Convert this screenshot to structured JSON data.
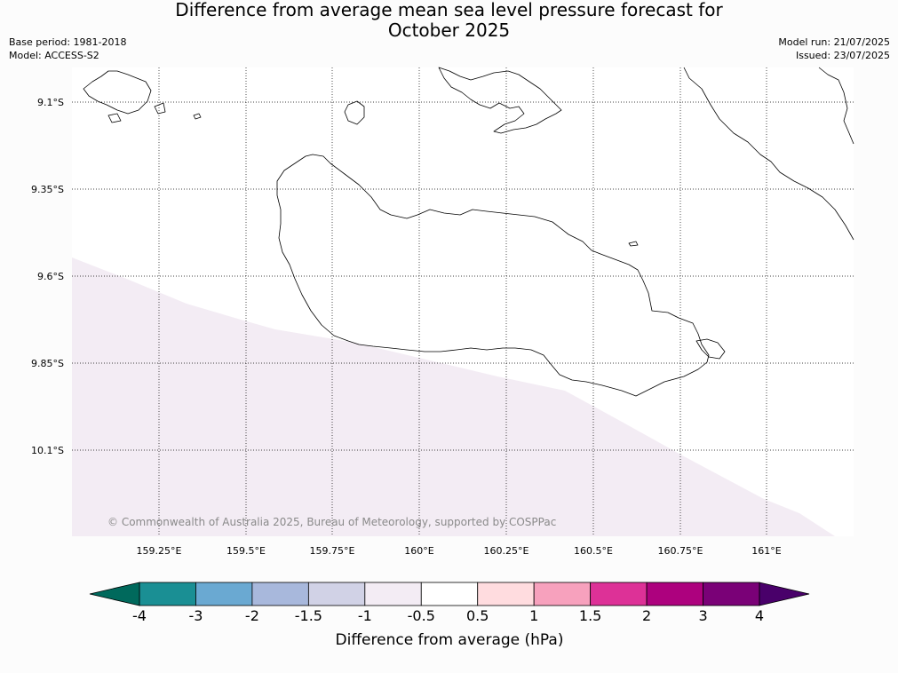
{
  "title": {
    "line1": "Difference from average mean sea level pressure forecast for",
    "line2": "October 2025"
  },
  "meta_left": {
    "base_period": "Base period: 1981-2018",
    "model": "Model: ACCESS-S2"
  },
  "meta_right": {
    "model_run": "Model run: 21/07/2025",
    "issued": "Issued: 23/07/2025"
  },
  "map": {
    "lat_labels": [
      "9.1°S",
      "9.35°S",
      "9.6°S",
      "9.85°S",
      "10.1°S"
    ],
    "lon_labels": [
      "159.25°E",
      "159.5°E",
      "159.75°E",
      "160°E",
      "160.25°E",
      "160.5°E",
      "160.75°E",
      "161°E"
    ],
    "copyright": "© Commonwealth of Australia 2025, Bureau of Meteorology, supported by COSPPac",
    "shaded_region_class": "-1 to -0.5",
    "shaded_region_color": "#f3ecf4",
    "coastline_color": "#000000",
    "gridline_style": "dotted"
  },
  "colorbar": {
    "title": "Difference from average (hPa)",
    "tick_labels": [
      "-4",
      "-3",
      "-2",
      "-1.5",
      "-1",
      "-0.5",
      "0.5",
      "1",
      "1.5",
      "2",
      "3",
      "4"
    ],
    "colors": [
      "#1a8f94",
      "#6aa9d2",
      "#a8b8dc",
      "#d1d2e6",
      "#f3ecf4",
      "#ffffff",
      "#ffdcdf",
      "#f7a1bd",
      "#dd3197",
      "#ad017e",
      "#7a0177"
    ],
    "extend_low_color": "#00695c",
    "extend_high_color": "#49006a"
  }
}
